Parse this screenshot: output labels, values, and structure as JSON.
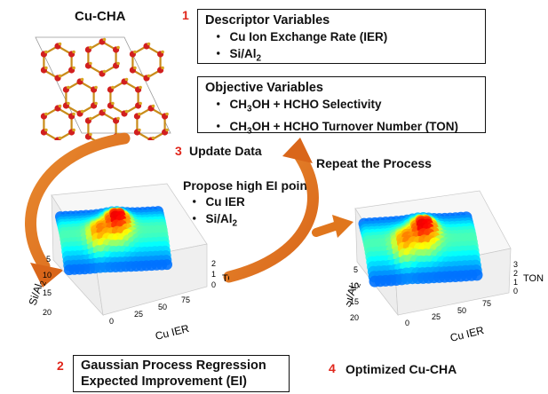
{
  "crystal_title": "Cu-CHA",
  "step1": {
    "number": "1",
    "descriptor": {
      "title": "Descriptor Variables",
      "items": [
        "Cu Ion Exchange Rate (IER)",
        "Si/Al",
        "2"
      ]
    },
    "objective": {
      "title": "Objective Variables",
      "item1_a": "CH",
      "item1_b": "3",
      "item1_c": "OH + HCHO Selectivity",
      "item2_a": "CH",
      "item2_b": "3",
      "item2_c": "OH + HCHO Turnover Number (TON)"
    }
  },
  "step3": {
    "number": "3",
    "label": "Update Data"
  },
  "repeat_label": "Repeat the Process",
  "propose": {
    "title": "Propose high EI points",
    "item1": "Cu IER",
    "item2_a": "Si/Al",
    "item2_b": "2"
  },
  "step2": {
    "number": "2",
    "line1": "Gaussian Process Regression",
    "line2": "Expected Improvement (EI)"
  },
  "step4": {
    "number": "4",
    "label": "Optimized Cu-CHA"
  },
  "bullet_symbol": "・",
  "plot_left": {
    "y_label_a": "Si/Al",
    "y_label_b": "2",
    "y_ticks": [
      "5",
      "10",
      "15",
      "20"
    ],
    "x_label": "Cu IER",
    "x_ticks": [
      "0",
      "25",
      "50",
      "75"
    ],
    "z_label": "TON",
    "z_ticks": [
      "2",
      "1",
      "0"
    ]
  },
  "plot_right": {
    "y_label_a": "Si/Al",
    "y_label_b": "2",
    "y_ticks": [
      "5",
      "10",
      "15",
      "20"
    ],
    "x_label": "Cu IER",
    "x_ticks": [
      "0",
      "25",
      "50",
      "75"
    ],
    "z_label": "TON",
    "z_ticks": [
      "3",
      "2",
      "1",
      "0"
    ]
  },
  "colors": {
    "accent_red": "#e0261b",
    "arrow_orange": "#e0761d",
    "atom_red": "#d11f1f",
    "atom_gold": "#d9a520"
  }
}
